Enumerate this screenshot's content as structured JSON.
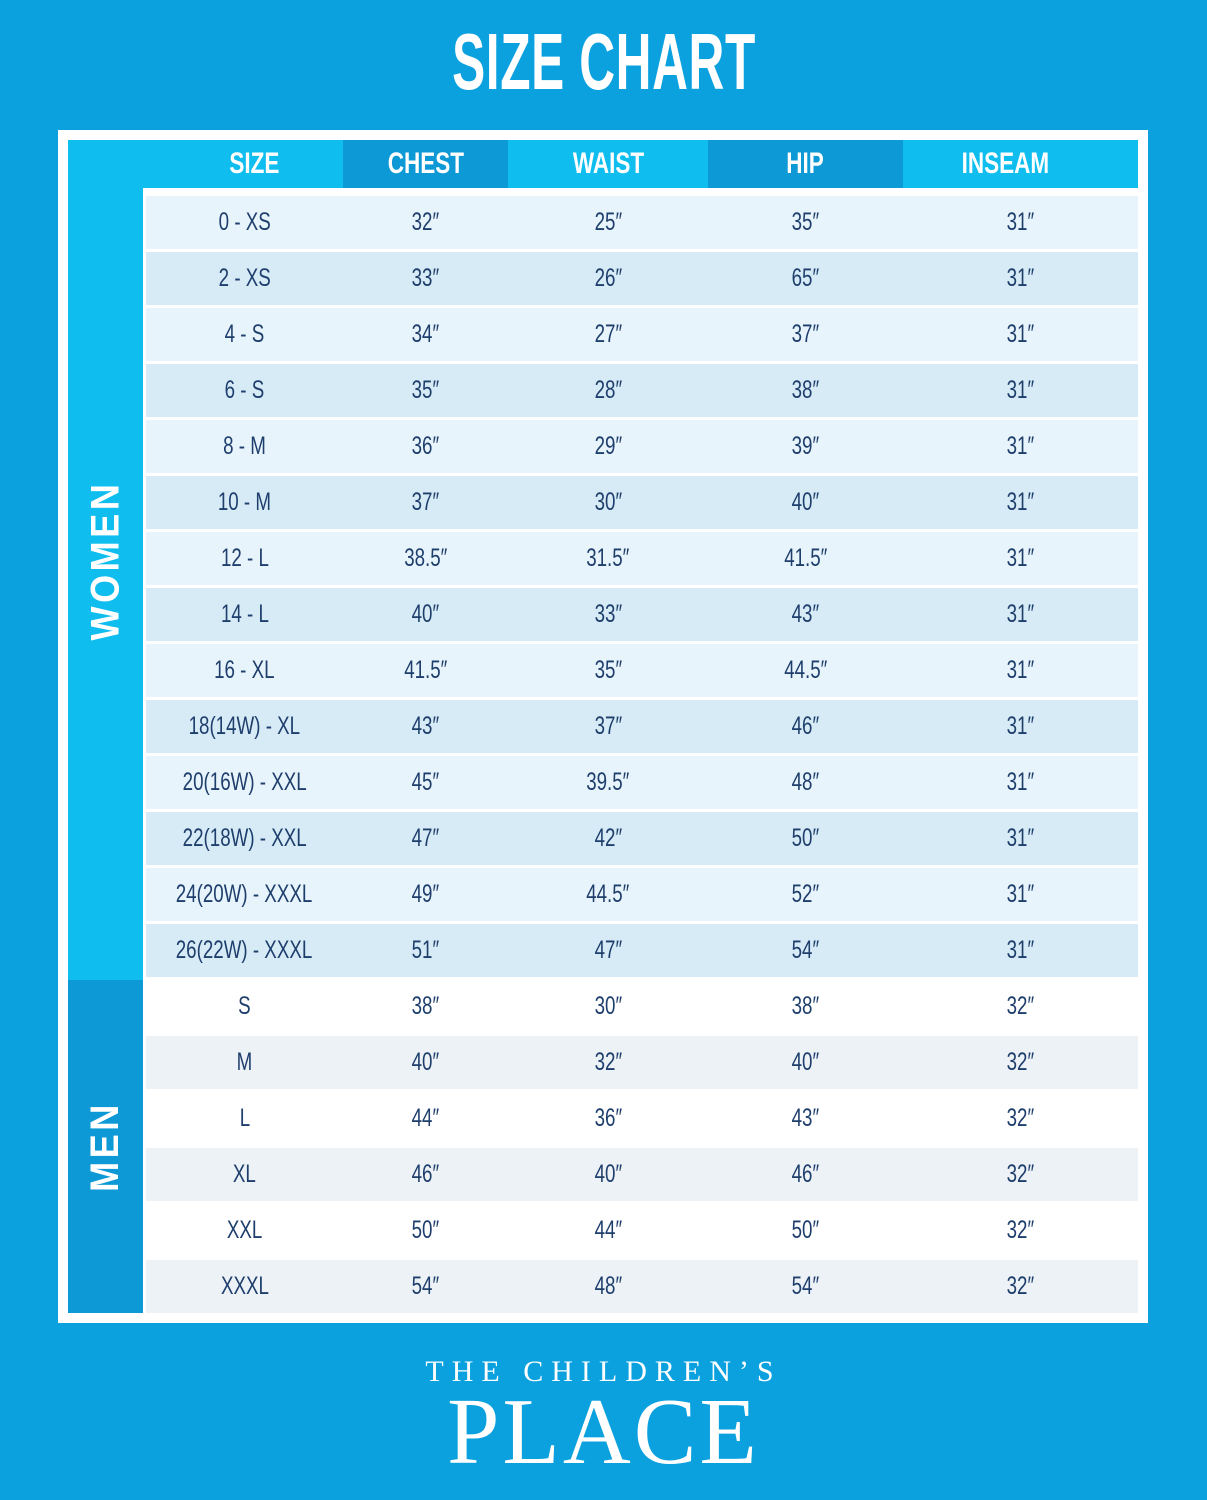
{
  "title": "SIZE CHART",
  "colors": {
    "background": "#0BA1DF",
    "accent_light_cyan": "#0FBEEF",
    "accent_dark_blue": "#0C99D6",
    "row_women_light": "#E8F4FB",
    "row_women_dark": "#D7EBF7",
    "row_men_light": "#FFFFFF",
    "row_men_alt": "#EDF2F7",
    "cell_text": "#1E3E6C",
    "header_text": "#FFFFFF"
  },
  "chart_data": {
    "type": "table",
    "title": "SIZE CHART",
    "columns": [
      "SIZE",
      "CHEST",
      "WAIST",
      "HIP",
      "INSEAM"
    ],
    "sections": [
      {
        "label": "WOMEN",
        "rows": [
          [
            "0 - XS",
            "32″",
            "25″",
            "35″",
            "31″"
          ],
          [
            "2 - XS",
            "33″",
            "26″",
            "65″",
            "31″"
          ],
          [
            "4 - S",
            "34″",
            "27″",
            "37″",
            "31″"
          ],
          [
            "6 - S",
            "35″",
            "28″",
            "38″",
            "31″"
          ],
          [
            "8 - M",
            "36″",
            "29″",
            "39″",
            "31″"
          ],
          [
            "10 - M",
            "37″",
            "30″",
            "40″",
            "31″"
          ],
          [
            "12 - L",
            "38.5″",
            "31.5″",
            "41.5″",
            "31″"
          ],
          [
            "14 - L",
            "40″",
            "33″",
            "43″",
            "31″"
          ],
          [
            "16 - XL",
            "41.5″",
            "35″",
            "44.5″",
            "31″"
          ],
          [
            "18(14W) - XL",
            "43″",
            "37″",
            "46″",
            "31″"
          ],
          [
            "20(16W) - XXL",
            "45″",
            "39.5″",
            "48″",
            "31″"
          ],
          [
            "22(18W) - XXL",
            "47″",
            "42″",
            "50″",
            "31″"
          ],
          [
            "24(20W) - XXXL",
            "49″",
            "44.5″",
            "52″",
            "31″"
          ],
          [
            "26(22W) - XXXL",
            "51″",
            "47″",
            "54″",
            "31″"
          ]
        ]
      },
      {
        "label": "MEN",
        "rows": [
          [
            "S",
            "38″",
            "30″",
            "38″",
            "32″"
          ],
          [
            "M",
            "40″",
            "32″",
            "40″",
            "32″"
          ],
          [
            "L",
            "44″",
            "36″",
            "43″",
            "32″"
          ],
          [
            "XL",
            "46″",
            "40″",
            "46″",
            "32″"
          ],
          [
            "XXL",
            "50″",
            "44″",
            "50″",
            "32″"
          ],
          [
            "XXXL",
            "54″",
            "48″",
            "54″",
            "32″"
          ]
        ]
      }
    ]
  },
  "footer": {
    "brand_line1": "THE CHILDREN’S",
    "brand_line2": "PLACE"
  }
}
